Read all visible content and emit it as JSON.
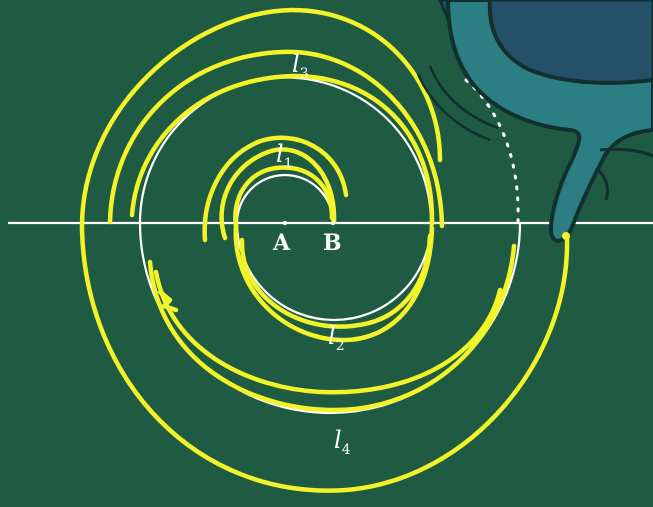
{
  "diagram": {
    "points": {
      "a": "A",
      "b": "B"
    },
    "curves": [
      {
        "letter": "l",
        "sub": "1"
      },
      {
        "letter": "l",
        "sub": "2"
      },
      {
        "letter": "l",
        "sub": "3"
      },
      {
        "letter": "l",
        "sub": "4"
      }
    ],
    "colors": {
      "board": "#1f5a43",
      "chalk_white": "#ffffff",
      "chalk_yellow": "#f3f32a",
      "hand_fill": "#2b7f83",
      "sleeve_fill": "#25506a"
    },
    "icons": [
      "hand-holding-chalk-icon"
    ]
  }
}
